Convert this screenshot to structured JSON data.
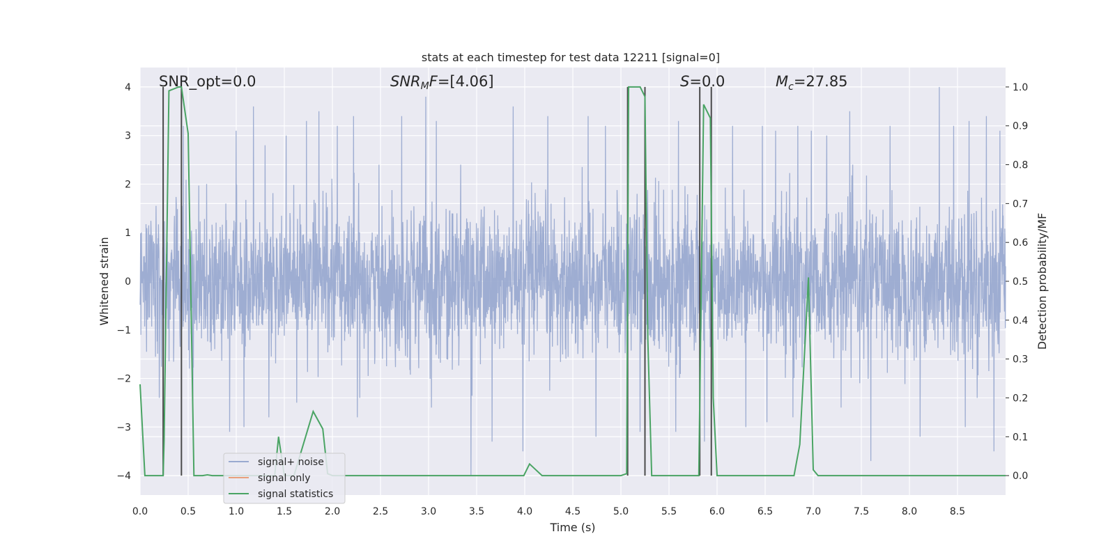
{
  "chart_data": {
    "type": "line",
    "title": "stats at each timestep for test data 12211 [signal=0]",
    "xlabel": "Time (s)",
    "ylabel": "Whitened strain",
    "y2label": "Detection probability/MF",
    "xlim": [
      0.0,
      9.0
    ],
    "ylim": [
      -4.4,
      4.4
    ],
    "y2lim": [
      -0.05,
      1.05
    ],
    "xticks": [
      0.0,
      0.5,
      1.0,
      1.5,
      2.0,
      2.5,
      3.0,
      3.5,
      4.0,
      4.5,
      5.0,
      5.5,
      6.0,
      6.5,
      7.0,
      7.5,
      8.0,
      8.5
    ],
    "xtick_labels": [
      "0.0",
      "0.5",
      "1.0",
      "1.5",
      "2.0",
      "2.5",
      "3.0",
      "3.5",
      "4.0",
      "4.5",
      "5.0",
      "5.5",
      "6.0",
      "6.5",
      "7.0",
      "7.5",
      "8.0",
      "8.5"
    ],
    "yticks": [
      -4,
      -3,
      -2,
      -1,
      0,
      1,
      2,
      3,
      4
    ],
    "ytick_labels": [
      "−4",
      "−3",
      "−2",
      "−1",
      "0",
      "1",
      "2",
      "3",
      "4"
    ],
    "y2ticks": [
      0.0,
      0.1,
      0.2,
      0.3,
      0.4,
      0.5,
      0.6,
      0.7,
      0.8,
      0.9,
      1.0
    ],
    "y2tick_labels": [
      "0.0",
      "0.1",
      "0.2",
      "0.3",
      "0.4",
      "0.5",
      "0.6",
      "0.7",
      "0.8",
      "0.9",
      "1.0"
    ],
    "grid": true,
    "legend_position": "lower-left",
    "annotations": {
      "snr_opt": "SNR_opt=0.0",
      "snr_mf_var": "SNR",
      "snr_mf_sub": "M",
      "snr_mf_suffix": "F",
      "snr_mf_value": "=[4.06]",
      "s_var": "S",
      "s_value": "=0.0",
      "mc_var": "M",
      "mc_sub": "c",
      "mc_value": "=27.85"
    },
    "vertical_lines_x": [
      0.24,
      0.43,
      5.07,
      5.25,
      5.82,
      5.94
    ],
    "vertical_lines_y": [
      -4.0,
      4.0
    ],
    "series": [
      {
        "name": "signal+ noise",
        "color": "#9aaad0",
        "axis": "left",
        "description_stats": {
          "mean": 0.0,
          "std": 0.75,
          "max": 4.0,
          "min": -4.0
        },
        "peaks_x": [
          0.45,
          0.55,
          1.0,
          1.08,
          1.18,
          1.3,
          1.52,
          1.73,
          1.86,
          2.05,
          2.22,
          2.72,
          2.97,
          3.08,
          3.44,
          3.88,
          4.24,
          4.66,
          4.84,
          5.6,
          6.16,
          6.47,
          6.61,
          6.84,
          6.98,
          7.14,
          7.38,
          7.6,
          7.8,
          8.31,
          8.46,
          8.62,
          8.8,
          8.94
        ],
        "peaks_y": [
          3.2,
          2.6,
          3.1,
          2.7,
          3.6,
          2.8,
          3.0,
          3.3,
          3.5,
          3.2,
          3.4,
          3.4,
          3.8,
          3.3,
          3.0,
          3.6,
          3.4,
          3.4,
          3.2,
          3.3,
          3.2,
          3.2,
          3.1,
          3.2,
          3.1,
          3.0,
          3.5,
          3.0,
          3.2,
          4.0,
          3.2,
          3.3,
          3.4,
          3.1
        ],
        "troughs_x": [
          0.2,
          0.55,
          0.93,
          1.08,
          1.34,
          1.63,
          2.26,
          3.03,
          3.44,
          3.66,
          3.98,
          4.74,
          5.2,
          5.57,
          5.87,
          6.3,
          6.52,
          6.79,
          7.29,
          7.6,
          8.11,
          8.58,
          8.88
        ],
        "troughs_y": [
          -2.4,
          -2.9,
          -3.1,
          -3.0,
          -2.8,
          -2.5,
          -2.8,
          -2.6,
          -4.0,
          -3.3,
          -3.5,
          -3.2,
          -3.1,
          -3.1,
          -3.3,
          -3.0,
          -2.9,
          -2.8,
          -2.6,
          -3.7,
          -3.2,
          -3.0,
          -3.5
        ]
      },
      {
        "name": "signal only",
        "color": "#e8a07c",
        "axis": "left",
        "x": [
          0.0,
          9.0
        ],
        "y": [
          0.0,
          0.0
        ]
      },
      {
        "name": "signal statistics",
        "color": "#4aa464",
        "axis": "right",
        "x": [
          0.0,
          0.05,
          0.24,
          0.25,
          0.3,
          0.4,
          0.43,
          0.5,
          0.56,
          0.65,
          0.7,
          0.75,
          1.0,
          1.2,
          1.4,
          1.44,
          1.5,
          1.6,
          1.8,
          1.9,
          1.95,
          2.0,
          2.5,
          3.0,
          3.5,
          3.99,
          4.05,
          4.18,
          4.5,
          5.0,
          5.06,
          5.08,
          5.13,
          5.2,
          5.25,
          5.28,
          5.32,
          5.5,
          5.81,
          5.86,
          5.93,
          5.96,
          6.0,
          6.5,
          6.8,
          6.86,
          6.95,
          7.0,
          7.05,
          7.5,
          8.0,
          8.5,
          9.0
        ],
        "y": [
          0.235,
          0.0,
          0.0,
          0.09,
          0.99,
          1.0,
          1.0,
          0.88,
          0.0,
          0.0,
          0.002,
          0.0,
          0.0,
          0.0,
          0.0,
          0.1,
          0.0,
          0.0,
          0.165,
          0.12,
          0.005,
          0.0,
          0.0,
          0.0,
          0.0,
          0.0,
          0.03,
          0.0,
          0.0,
          0.0,
          0.005,
          1.0,
          1.0,
          1.0,
          0.975,
          0.35,
          0.0,
          0.0,
          0.0,
          0.955,
          0.92,
          0.2,
          0.0,
          0.0,
          0.0,
          0.08,
          0.51,
          0.015,
          0.0,
          0.0,
          0.0,
          0.0,
          0.0
        ]
      }
    ]
  }
}
